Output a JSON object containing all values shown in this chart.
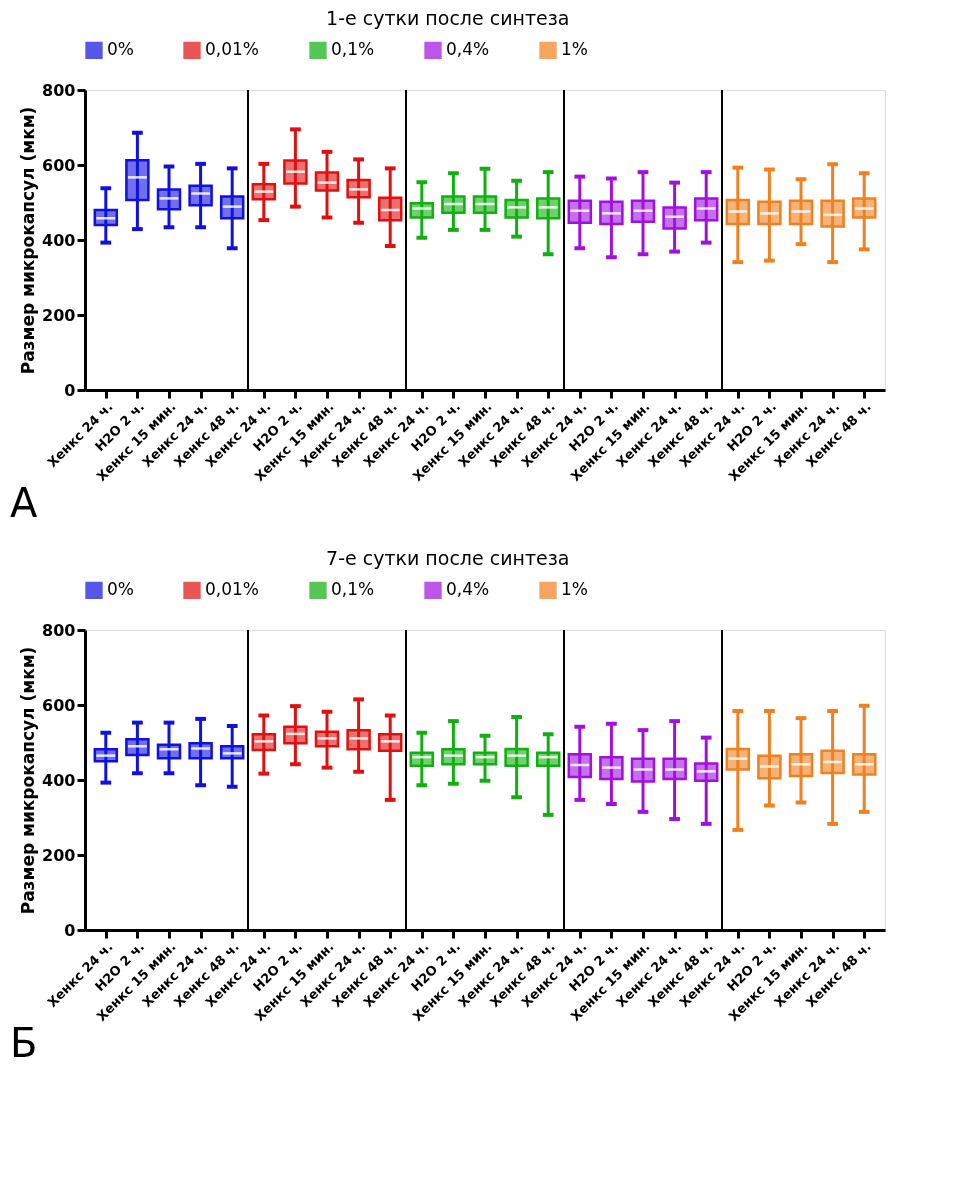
{
  "chart_data": [
    {
      "type": "box",
      "title": "1-е сутки после синтеза",
      "ylabel": "Размер микрокапсул (мкм)",
      "ylim": [
        0,
        800
      ],
      "yticks": [
        0,
        200,
        400,
        600,
        800
      ],
      "legend": "top",
      "annotations": [
        "А"
      ],
      "categories": [
        "Хенкс 24 ч.",
        "H2O 2 ч.",
        "Хенкс 15 мин.",
        "Хенкс 24 ч.",
        "Хенкс 48 ч.",
        "Хенкс 24 ч.",
        "H2O 2 ч.",
        "Хенкс 15 мин.",
        "Хенкс 24 ч.",
        "Хенкс 48 ч.",
        "Хенкс 24 ч.",
        "H2O 2 ч.",
        "Хенкс 15 мин.",
        "Хенкс 24 ч.",
        "Хенкс 48 ч.",
        "Хенкс 24 ч.",
        "H2O 2 ч.",
        "Хенкс 15 мин.",
        "Хенкс 24 ч.",
        "Хенкс 48 ч.",
        "Хенкс 24 ч.",
        "H2O 2 ч.",
        "Хенкс 15 мин.",
        "Хенкс 24 ч.",
        "Хенкс 48 ч."
      ],
      "series": [
        {
          "name": "0%",
          "color": "#1010e0",
          "boxes": [
            {
              "low": 393,
              "q1": 440,
              "median": 458,
              "q3": 480,
              "high": 538
            },
            {
              "low": 429,
              "q1": 507,
              "median": 567,
              "q3": 613,
              "high": 686
            },
            {
              "low": 434,
              "q1": 482,
              "median": 511,
              "q3": 535,
              "high": 596
            },
            {
              "low": 434,
              "q1": 493,
              "median": 524,
              "q3": 545,
              "high": 603
            },
            {
              "low": 378,
              "q1": 458,
              "median": 489,
              "q3": 516,
              "high": 591
            },
            null,
            null,
            null,
            null,
            null,
            null,
            null,
            null,
            null,
            null,
            null,
            null,
            null,
            null,
            null,
            null,
            null,
            null,
            null,
            null
          ]
        },
        {
          "name": "0,01%",
          "color": "#e01010",
          "boxes": [
            null,
            null,
            null,
            null,
            null,
            {
              "low": 453,
              "q1": 509,
              "median": 529,
              "q3": 549,
              "high": 603
            },
            {
              "low": 489,
              "q1": 551,
              "median": 582,
              "q3": 612,
              "high": 695
            },
            {
              "low": 460,
              "q1": 532,
              "median": 553,
              "q3": 580,
              "high": 635
            },
            {
              "low": 446,
              "q1": 514,
              "median": 535,
              "q3": 560,
              "high": 615
            },
            {
              "low": 384,
              "q1": 453,
              "median": 480,
              "q3": 513,
              "high": 591
            },
            null,
            null,
            null,
            null,
            null,
            null,
            null,
            null,
            null,
            null,
            null,
            null,
            null,
            null,
            null
          ]
        },
        {
          "name": "0,1%",
          "color": "#10b010",
          "boxes": [
            null,
            null,
            null,
            null,
            null,
            null,
            null,
            null,
            null,
            null,
            {
              "low": 406,
              "q1": 460,
              "median": 484,
              "q3": 498,
              "high": 554
            },
            {
              "low": 427,
              "q1": 473,
              "median": 496,
              "q3": 516,
              "high": 578
            },
            {
              "low": 427,
              "q1": 473,
              "median": 496,
              "q3": 516,
              "high": 590
            },
            {
              "low": 409,
              "q1": 460,
              "median": 487,
              "q3": 507,
              "high": 558
            },
            {
              "low": 362,
              "q1": 458,
              "median": 487,
              "q3": 511,
              "high": 581
            },
            null,
            null,
            null,
            null,
            null,
            null,
            null,
            null,
            null,
            null
          ]
        },
        {
          "name": "0,4%",
          "color": "#a010e0",
          "boxes": [
            null,
            null,
            null,
            null,
            null,
            null,
            null,
            null,
            null,
            null,
            null,
            null,
            null,
            null,
            null,
            {
              "low": 378,
              "q1": 446,
              "median": 478,
              "q3": 505,
              "high": 569
            },
            {
              "low": 354,
              "q1": 443,
              "median": 471,
              "q3": 502,
              "high": 564
            },
            {
              "low": 362,
              "q1": 449,
              "median": 478,
              "q3": 505,
              "high": 581
            },
            {
              "low": 369,
              "q1": 431,
              "median": 462,
              "q3": 487,
              "high": 553
            },
            {
              "low": 393,
              "q1": 453,
              "median": 484,
              "q3": 511,
              "high": 581
            },
            null,
            null,
            null,
            null,
            null
          ]
        },
        {
          "name": "1%",
          "color": "#f08020",
          "boxes": [
            null,
            null,
            null,
            null,
            null,
            null,
            null,
            null,
            null,
            null,
            null,
            null,
            null,
            null,
            null,
            null,
            null,
            null,
            null,
            null,
            {
              "low": 341,
              "q1": 443,
              "median": 476,
              "q3": 507,
              "high": 593
            },
            {
              "low": 345,
              "q1": 443,
              "median": 471,
              "q3": 502,
              "high": 588
            },
            {
              "low": 389,
              "q1": 443,
              "median": 476,
              "q3": 505,
              "high": 562
            },
            {
              "low": 341,
              "q1": 436,
              "median": 467,
              "q3": 505,
              "high": 602
            },
            {
              "low": 375,
              "q1": 460,
              "median": 484,
              "q3": 511,
              "high": 578
            }
          ]
        }
      ]
    },
    {
      "type": "box",
      "title": "7-е сутки после синтеза",
      "ylabel": "Размер микрокапсул (мкм)",
      "ylim": [
        0,
        800
      ],
      "yticks": [
        0,
        200,
        400,
        600,
        800
      ],
      "legend": "top",
      "annotations": [
        "Б"
      ],
      "categories": [
        "Хенкс 24 ч.",
        "H2O 2 ч.",
        "Хенкс 15 мин.",
        "Хенкс 24 ч.",
        "Хенкс 48 ч.",
        "Хенкс 24 ч.",
        "H2O 2 ч.",
        "Хенкс 15 мин.",
        "Хенкс 24 ч.",
        "Хенкс 48 ч.",
        "Хенкс 24 ч.",
        "H2O 2 ч.",
        "Хенкс 15 мин.",
        "Хенкс 24 ч.",
        "Хенкс 48 ч.",
        "Хенкс 24 ч.",
        "H2O 2 ч.",
        "Хенкс 15 мин.",
        "Хенкс 24 ч.",
        "Хенкс 48 ч.",
        "Хенкс 24 ч.",
        "H2O 2 ч.",
        "Хенкс 15 мин.",
        "Хенкс 24 ч.",
        "Хенкс 48 ч."
      ],
      "series": [
        {
          "name": "0%",
          "color": "#1010e0",
          "boxes": [
            {
              "low": 393,
              "q1": 450,
              "median": 465,
              "q3": 482,
              "high": 526
            },
            {
              "low": 418,
              "q1": 467,
              "median": 490,
              "q3": 509,
              "high": 553
            },
            {
              "low": 418,
              "q1": 458,
              "median": 482,
              "q3": 494,
              "high": 553
            },
            {
              "low": 386,
              "q1": 458,
              "median": 484,
              "q3": 498,
              "high": 563
            },
            {
              "low": 382,
              "q1": 458,
              "median": 471,
              "q3": 490,
              "high": 544
            },
            null,
            null,
            null,
            null,
            null,
            null,
            null,
            null,
            null,
            null,
            null,
            null,
            null,
            null,
            null,
            null,
            null,
            null,
            null,
            null
          ]
        },
        {
          "name": "0,01%",
          "color": "#e01010",
          "boxes": [
            null,
            null,
            null,
            null,
            null,
            {
              "low": 417,
              "q1": 480,
              "median": 503,
              "q3": 522,
              "high": 572
            },
            {
              "low": 442,
              "q1": 498,
              "median": 523,
              "q3": 542,
              "high": 597
            },
            {
              "low": 433,
              "q1": 490,
              "median": 511,
              "q3": 529,
              "high": 582
            },
            {
              "low": 422,
              "q1": 482,
              "median": 511,
              "q3": 533,
              "high": 615
            },
            {
              "low": 347,
              "q1": 478,
              "median": 503,
              "q3": 522,
              "high": 572
            },
            null,
            null,
            null,
            null,
            null,
            null,
            null,
            null,
            null,
            null,
            null,
            null,
            null,
            null,
            null
          ]
        },
        {
          "name": "0,1%",
          "color": "#10b010",
          "boxes": [
            null,
            null,
            null,
            null,
            null,
            null,
            null,
            null,
            null,
            null,
            {
              "low": 386,
              "q1": 438,
              "median": 461,
              "q3": 473,
              "high": 526
            },
            {
              "low": 390,
              "q1": 442,
              "median": 465,
              "q3": 482,
              "high": 557
            },
            {
              "low": 398,
              "q1": 442,
              "median": 461,
              "q3": 473,
              "high": 518
            },
            {
              "low": 354,
              "q1": 438,
              "median": 465,
              "q3": 483,
              "high": 568
            },
            {
              "low": 307,
              "q1": 438,
              "median": 461,
              "q3": 473,
              "high": 522
            },
            null,
            null,
            null,
            null,
            null,
            null,
            null,
            null,
            null,
            null
          ]
        },
        {
          "name": "0,4%",
          "color": "#a010e0",
          "boxes": [
            null,
            null,
            null,
            null,
            null,
            null,
            null,
            null,
            null,
            null,
            null,
            null,
            null,
            null,
            null,
            {
              "low": 347,
              "q1": 408,
              "median": 440,
              "q3": 469,
              "high": 542
            },
            {
              "low": 336,
              "q1": 403,
              "median": 433,
              "q3": 461,
              "high": 550
            },
            {
              "low": 315,
              "q1": 396,
              "median": 428,
              "q3": 457,
              "high": 533
            },
            {
              "low": 296,
              "q1": 403,
              "median": 428,
              "q3": 457,
              "high": 557
            },
            {
              "low": 283,
              "q1": 398,
              "median": 423,
              "q3": 444,
              "high": 513
            },
            null,
            null,
            null,
            null,
            null
          ]
        },
        {
          "name": "1%",
          "color": "#f08020",
          "boxes": [
            null,
            null,
            null,
            null,
            null,
            null,
            null,
            null,
            null,
            null,
            null,
            null,
            null,
            null,
            null,
            null,
            null,
            null,
            null,
            null,
            {
              "low": 267,
              "q1": 428,
              "median": 457,
              "q3": 483,
              "high": 584
            },
            {
              "low": 332,
              "q1": 405,
              "median": 436,
              "q3": 465,
              "high": 584
            },
            {
              "low": 340,
              "q1": 411,
              "median": 442,
              "q3": 469,
              "high": 565
            },
            {
              "low": 283,
              "q1": 419,
              "median": 448,
              "q3": 478,
              "high": 584
            },
            {
              "low": 315,
              "q1": 415,
              "median": 442,
              "q3": 469,
              "high": 598
            }
          ]
        }
      ]
    }
  ]
}
